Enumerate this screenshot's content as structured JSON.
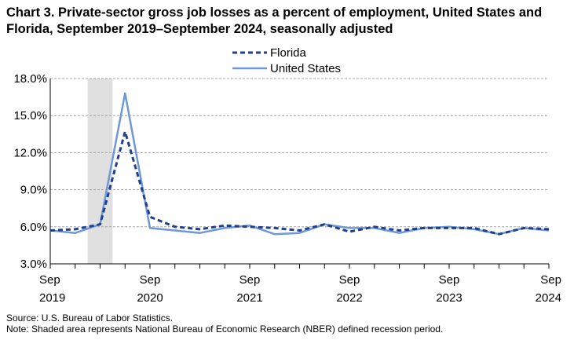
{
  "chart_data": {
    "type": "line",
    "title": "Chart 3. Private-sector gross job losses as a percent of employment, United States and Florida, September 2019–September 2024, seasonally adjusted",
    "xlabel": "",
    "ylabel": "",
    "ylim": [
      3.0,
      18.0
    ],
    "y_ticks": [
      "3.0%",
      "6.0%",
      "9.0%",
      "12.0%",
      "15.0%",
      "18.0%"
    ],
    "y_tick_values": [
      3.0,
      6.0,
      9.0,
      12.0,
      15.0,
      18.0
    ],
    "x_tick_labels": [
      {
        "month": "Sep",
        "year": "2019",
        "index": 0
      },
      {
        "month": "Sep",
        "year": "2020",
        "index": 4
      },
      {
        "month": "Sep",
        "year": "2021",
        "index": 8
      },
      {
        "month": "Sep",
        "year": "2022",
        "index": 12
      },
      {
        "month": "Sep",
        "year": "2023",
        "index": 16
      },
      {
        "month": "Sep",
        "year": "2024",
        "index": 20
      }
    ],
    "x": [
      "Sep 2019",
      "Dec 2019",
      "Mar 2020",
      "Jun 2020",
      "Sep 2020",
      "Dec 2020",
      "Mar 2021",
      "Jun 2021",
      "Sep 2021",
      "Dec 2021",
      "Mar 2022",
      "Jun 2022",
      "Sep 2022",
      "Dec 2022",
      "Mar 2023",
      "Jun 2023",
      "Sep 2023",
      "Dec 2023",
      "Mar 2024",
      "Jun 2024",
      "Sep 2024"
    ],
    "recession": {
      "start_index": 1.5,
      "end_index": 2.5
    },
    "grid": true,
    "legend_position": "top-center",
    "series": [
      {
        "name": "Florida",
        "style": "dashed",
        "color": "#1f3f8f",
        "values": [
          5.7,
          5.8,
          6.2,
          13.7,
          6.8,
          6.0,
          5.8,
          6.1,
          6.0,
          5.9,
          5.7,
          6.2,
          5.6,
          6.0,
          5.7,
          5.9,
          5.9,
          5.9,
          5.4,
          5.9,
          5.8
        ]
      },
      {
        "name": "United States",
        "style": "solid",
        "color": "#6f98d6",
        "values": [
          5.7,
          5.5,
          6.2,
          16.8,
          5.9,
          5.7,
          5.5,
          5.9,
          6.1,
          5.4,
          5.5,
          6.2,
          5.9,
          5.9,
          5.5,
          5.9,
          6.0,
          5.8,
          5.4,
          5.9,
          5.7
        ]
      }
    ]
  },
  "footer": {
    "source": "Source: U.S. Bureau of Labor Statistics.",
    "note": "Note: Shaded area represents National Bureau of Economic Research (NBER) defined recession period."
  }
}
